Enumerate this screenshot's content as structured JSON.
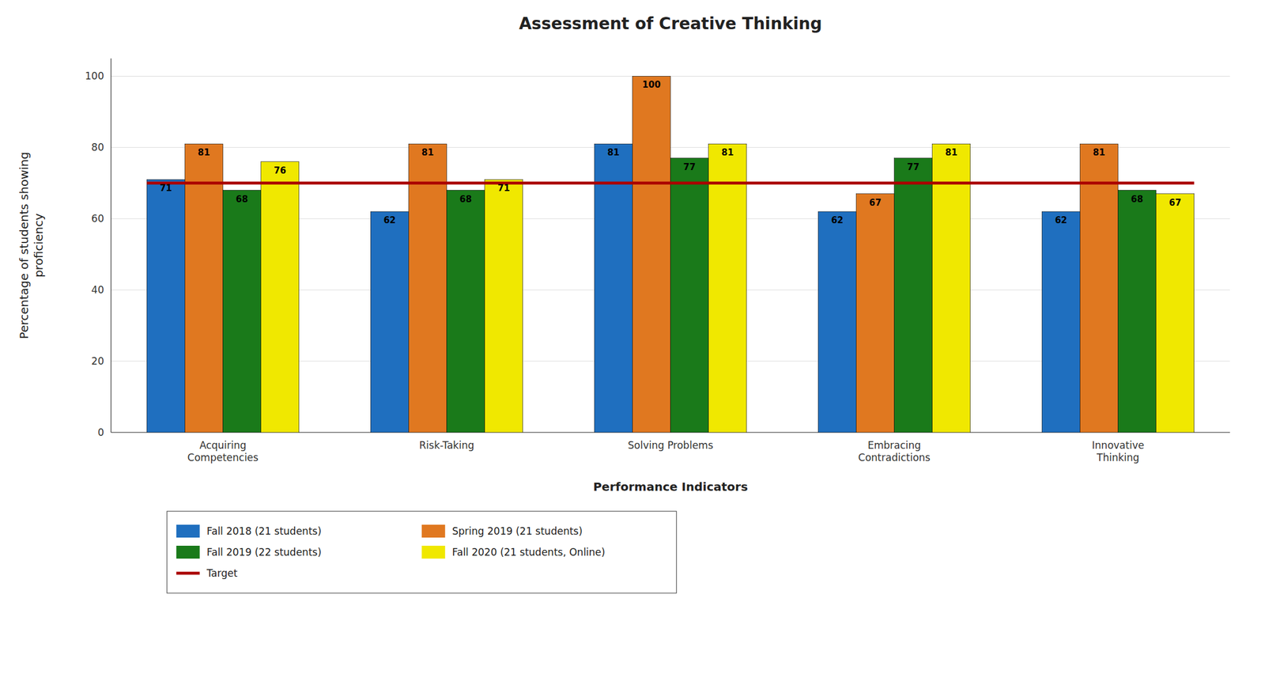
{
  "chart_data": {
    "type": "bar",
    "title": "Assessment of Creative Thinking",
    "xlabel": "Performance Indicators",
    "ylabel": "Percentage of students showing\nproficiency",
    "categories": [
      "Acquiring\nCompetencies",
      "Risk-Taking",
      "Solving Problems",
      "Embracing\nContradictions",
      "Innovative\nThinking"
    ],
    "series": [
      {
        "name": "Fall 2018 (21 students)",
        "color": "#1F6FBF",
        "values": [
          71,
          62,
          81,
          62,
          62
        ]
      },
      {
        "name": "Spring 2019 (21 students)",
        "color": "#E07820",
        "values": [
          81,
          81,
          100,
          67,
          81
        ]
      },
      {
        "name": "Fall 2019 (22 students)",
        "color": "#1A7A1A",
        "values": [
          68,
          68,
          77,
          77,
          68
        ]
      },
      {
        "name": "Fall 2020 (21 students, Online)",
        "color": "#F0E800",
        "values": [
          76,
          71,
          81,
          81,
          67
        ]
      }
    ],
    "target": {
      "name": "Target",
      "value": 70,
      "color": "#AA0000"
    },
    "ylim": [
      0,
      105
    ],
    "yticks": [
      0,
      20,
      40,
      60,
      80,
      100
    ],
    "grid": true,
    "data_labels": true,
    "legend": "bottom"
  }
}
